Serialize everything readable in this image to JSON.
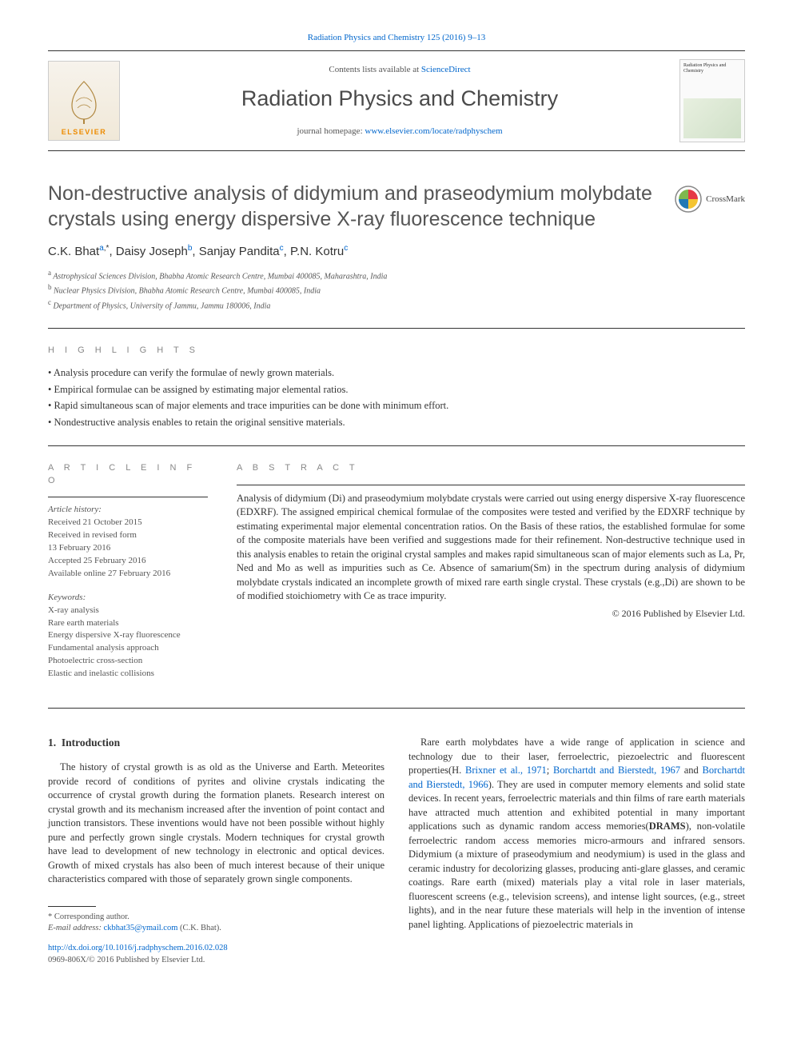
{
  "journal_ref": {
    "text": "Radiation Physics and Chemistry 125 (2016) 9–13",
    "url_label": "Radiation Physics and Chemistry 125 (2016) 9–13"
  },
  "masthead": {
    "contents_prefix": "Contents lists available at ",
    "contents_link": "ScienceDirect",
    "journal_title": "Radiation Physics and Chemistry",
    "homepage_prefix": "journal homepage: ",
    "homepage_url": "www.elsevier.com/locate/radphyschem",
    "publisher_logo_label": "ELSEVIER",
    "cover_title": "Radiation Physics and Chemistry"
  },
  "crossmark": {
    "label": "CrossMark"
  },
  "article": {
    "title": "Non-destructive analysis of didymium and praseodymium molybdate crystals using energy dispersive X-ray fluorescence technique",
    "authors": [
      {
        "name": "C.K. Bhat",
        "aff": "a",
        "corr": true
      },
      {
        "name": "Daisy Joseph",
        "aff": "b",
        "corr": false
      },
      {
        "name": "Sanjay Pandita",
        "aff": "c",
        "corr": false
      },
      {
        "name": "P.N. Kotru",
        "aff": "c",
        "corr": false
      }
    ],
    "authors_line_rendered": "C.K. Bhat a,*, Daisy Joseph b, Sanjay Pandita c, P.N. Kotru c",
    "affiliations": [
      {
        "sup": "a",
        "text": "Astrophysical Sciences Division, Bhabha Atomic Research Centre, Mumbai 400085, Maharashtra, India"
      },
      {
        "sup": "b",
        "text": "Nuclear Physics Division, Bhabha Atomic Research Centre, Mumbai 400085, India"
      },
      {
        "sup": "c",
        "text": "Department of Physics, University of Jammu, Jammu 180006, India"
      }
    ]
  },
  "highlights": {
    "heading": "H I G H L I G H T S",
    "items": [
      "Analysis procedure can verify the formulae of newly grown materials.",
      "Empirical formulae can be assigned by estimating major elemental ratios.",
      "Rapid simultaneous scan of major elements and trace impurities can be done with minimum effort.",
      "Nondestructive analysis enables to retain the original sensitive materials."
    ]
  },
  "article_info": {
    "heading": "A R T I C L E  I N F O",
    "history_label": "Article history:",
    "history": [
      "Received 21 October 2015",
      "Received in revised form",
      "13 February 2016",
      "Accepted 25 February 2016",
      "Available online 27 February 2016"
    ],
    "keywords_label": "Keywords:",
    "keywords": [
      "X-ray analysis",
      "Rare earth materials",
      "Energy dispersive X-ray fluorescence",
      "Fundamental analysis approach",
      "Photoelectric cross-section",
      "Elastic and inelastic collisions"
    ]
  },
  "abstract": {
    "heading": "A B S T R A C T",
    "text": "Analysis of didymium (Di) and praseodymium molybdate crystals were carried out using energy dispersive X-ray fluorescence (EDXRF). The assigned empirical chemical formulae of the composites were tested and verified by the EDXRF technique by estimating experimental major elemental concentration ratios. On the Basis of these ratios, the established formulae for some of the composite materials have been verified and suggestions made for their refinement. Non-destructive technique used in this analysis enables to retain the original crystal samples and makes rapid simultaneous scan of major elements such as La, Pr, Ned and Mo as well as impurities such as Ce. Absence of samarium(Sm) in the spectrum during analysis of didymium molybdate crystals indicated an incomplete growth of mixed rare earth single crystal. These crystals (e.g.,Di) are shown to be of modified stoichiometry with Ce as trace impurity.",
    "copyright": "© 2016 Published by Elsevier Ltd."
  },
  "body": {
    "section_number": "1.",
    "section_title": "Introduction",
    "col1_p1": "The history of crystal growth is as old as the Universe and Earth. Meteorites provide record of conditions of pyrites and olivine crystals indicating the occurrence of crystal growth during the formation planets. Research interest on crystal growth and its mechanism increased after the invention of point contact and junction transistors. These inventions would have not been possible without highly pure and perfectly grown single crystals. Modern techniques for crystal growth have lead to development of new technology in electronic and optical devices. Growth of mixed crystals has also been of much interest because of their unique characteristics compared with those of separately grown single components.",
    "col2_p1_pre": "Rare earth molybdates have a wide range of application in science and technology due to their laser, ferroelectric, piezoelectric and fluorescent properties(H. ",
    "col2_link1": "Brixner et al., 1971",
    "col2_mid1": "; ",
    "col2_link2": "Borchartdt and Bierstedt, 1967",
    "col2_mid2": " and ",
    "col2_link3": "Borchartdt and Bierstedt, 1966",
    "col2_p1_post": "). They are used in computer memory elements and solid state devices. In recent years, ferroelectric materials and thin films of rare earth materials have attracted much attention and exhibited potential in many important applications such as dynamic random access memories(DRAMS), non-volatile ferroelectric random access memories micro-armours and infrared sensors. Didymium (a mixture of praseodymium and neodymium) is used in the glass and ceramic industry for decolorizing glasses, producing anti-glare glasses, and ceramic coatings. Rare earth (mixed) materials play a vital role in laser materials, fluorescent screens (e.g., television screens), and intense light sources, (e.g., street lights), and in the near future these materials will help in the invention of intense panel lighting. Applications of piezoelectric materials in"
  },
  "footnotes": {
    "corr_label": "* Corresponding author.",
    "email_label": "E-mail address: ",
    "email": "ckbhat35@ymail.com",
    "email_suffix": " (C.K. Bhat).",
    "doi": "http://dx.doi.org/10.1016/j.radphyschem.2016.02.028",
    "issn_line": "0969-806X/© 2016 Published by Elsevier Ltd."
  },
  "colors": {
    "link": "#0066cc",
    "text": "#333333",
    "muted": "#555555",
    "heading_gray": "#888888",
    "elsevier_orange": "#ed8b00",
    "crossmark_red": "#e63946",
    "crossmark_yellow": "#f4c430",
    "crossmark_blue": "#1f78b4",
    "crossmark_ring": "#888888"
  }
}
